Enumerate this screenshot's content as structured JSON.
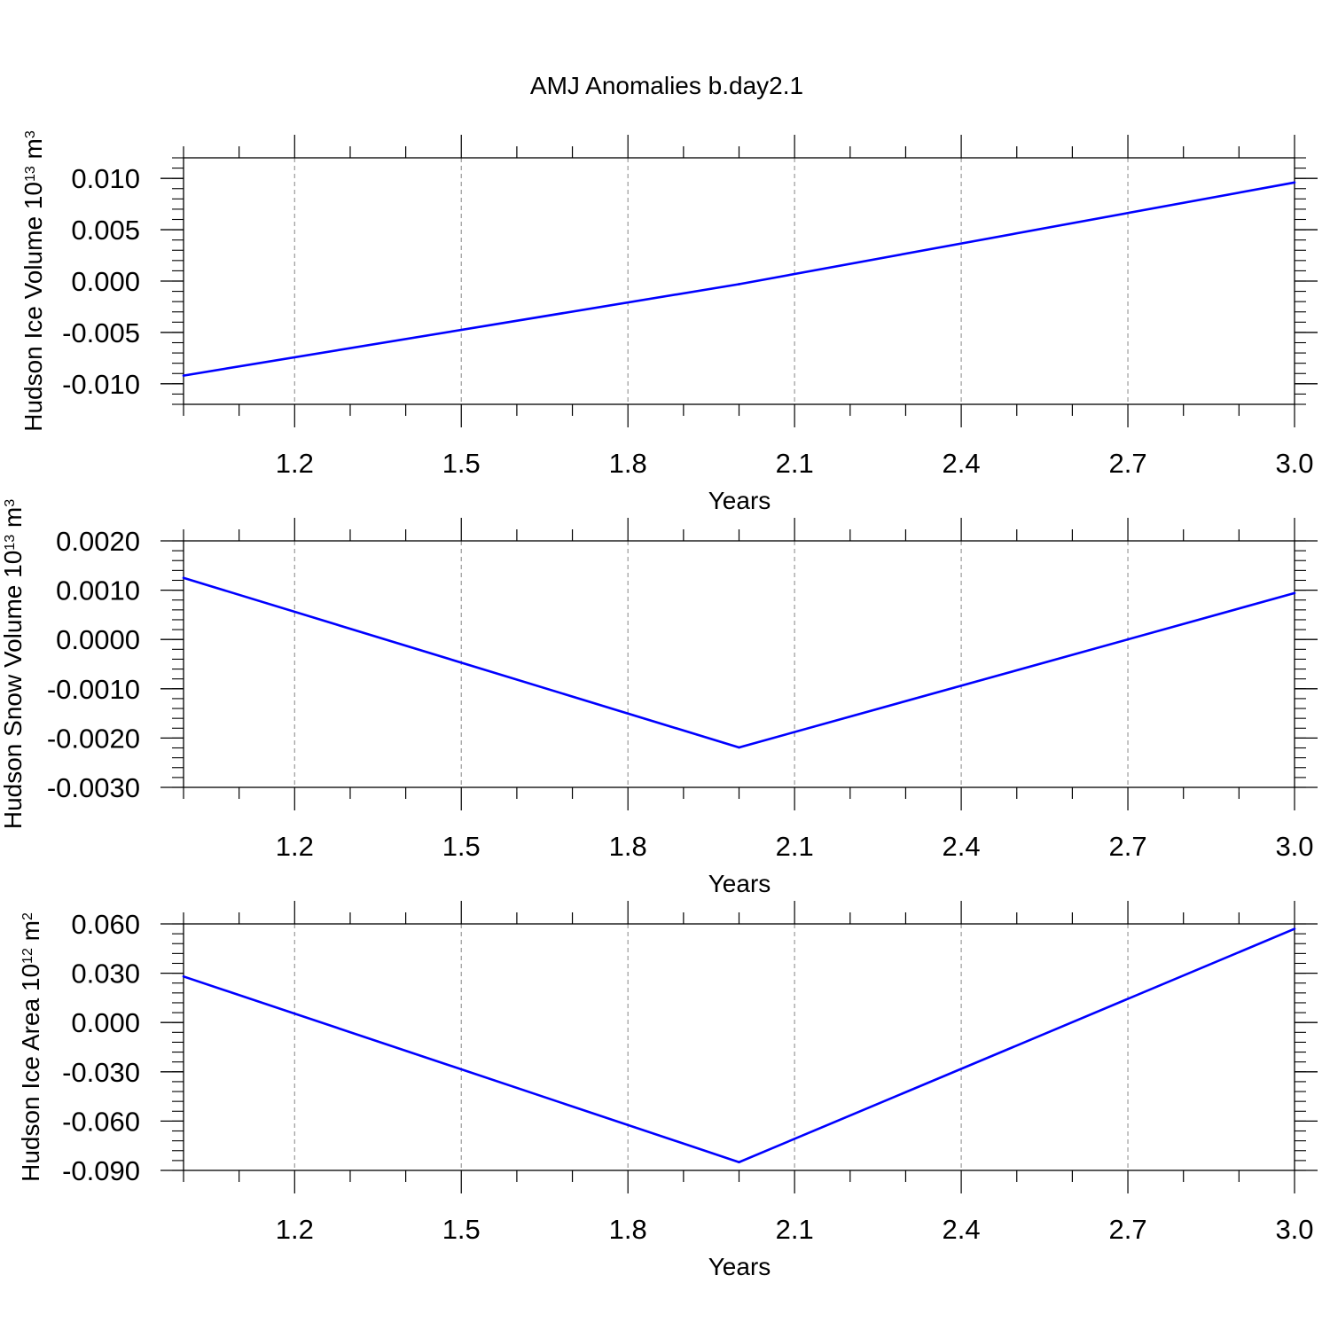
{
  "figure": {
    "title": "AMJ Anomalies b.day2.1"
  },
  "chart_data": [
    {
      "type": "line",
      "title": "AMJ Anomalies b.day2.1",
      "xlabel": "Years",
      "ylabel": "Hudson Ice Volume 10",
      "ylabel_sup": "13",
      "ylabel_unit": " m",
      "ylabel_unit_sup": "3",
      "xlim": [
        1.0,
        3.0
      ],
      "ylim": [
        -0.012,
        0.012
      ],
      "x_ticks": [
        1.2,
        1.5,
        1.8,
        2.1,
        2.4,
        2.7,
        3.0
      ],
      "x_tick_labels": [
        "1.2",
        "1.5",
        "1.8",
        "2.1",
        "2.4",
        "2.7",
        "3.0"
      ],
      "y_ticks": [
        -0.01,
        -0.005,
        0.0,
        0.005,
        0.01
      ],
      "y_tick_labels": [
        "-0.010",
        "-0.005",
        "0.000",
        "0.005",
        "0.010"
      ],
      "grid": "vertical-dashed",
      "series": [
        {
          "color": "#0000ff",
          "x": [
            1.0,
            2.0,
            3.0
          ],
          "y": [
            -0.0092,
            -0.0003,
            0.0096
          ]
        }
      ]
    },
    {
      "type": "line",
      "xlabel": "Years",
      "ylabel": "Hudson Snow Volume 10",
      "ylabel_sup": "13",
      "ylabel_unit": " m",
      "ylabel_unit_sup": "3",
      "xlim": [
        1.0,
        3.0
      ],
      "ylim": [
        -0.003,
        0.002
      ],
      "x_ticks": [
        1.2,
        1.5,
        1.8,
        2.1,
        2.4,
        2.7,
        3.0
      ],
      "x_tick_labels": [
        "1.2",
        "1.5",
        "1.8",
        "2.1",
        "2.4",
        "2.7",
        "3.0"
      ],
      "y_ticks": [
        -0.003,
        -0.002,
        -0.001,
        0.0,
        0.001,
        0.002
      ],
      "y_tick_labels": [
        "-0.0030",
        "-0.0020",
        "-0.0010",
        "0.0000",
        "0.0010",
        "0.0020"
      ],
      "grid": "vertical-dashed",
      "series": [
        {
          "color": "#0000ff",
          "x": [
            1.0,
            2.0,
            3.0
          ],
          "y": [
            0.00125,
            -0.00219,
            0.00094
          ]
        }
      ]
    },
    {
      "type": "line",
      "xlabel": "Years",
      "ylabel": "Hudson Ice Area 10",
      "ylabel_sup": "12",
      "ylabel_unit": " m",
      "ylabel_unit_sup": "2",
      "xlim": [
        1.0,
        3.0
      ],
      "ylim": [
        -0.09,
        0.06
      ],
      "x_ticks": [
        1.2,
        1.5,
        1.8,
        2.1,
        2.4,
        2.7,
        3.0
      ],
      "x_tick_labels": [
        "1.2",
        "1.5",
        "1.8",
        "2.1",
        "2.4",
        "2.7",
        "3.0"
      ],
      "y_ticks": [
        -0.09,
        -0.06,
        -0.03,
        0.0,
        0.03,
        0.06
      ],
      "y_tick_labels": [
        "-0.090",
        "-0.060",
        "-0.030",
        "0.000",
        "0.030",
        "0.060"
      ],
      "grid": "vertical-dashed",
      "series": [
        {
          "color": "#0000ff",
          "x": [
            1.0,
            2.0,
            3.0
          ],
          "y": [
            0.028,
            -0.085,
            0.057
          ]
        }
      ]
    }
  ]
}
